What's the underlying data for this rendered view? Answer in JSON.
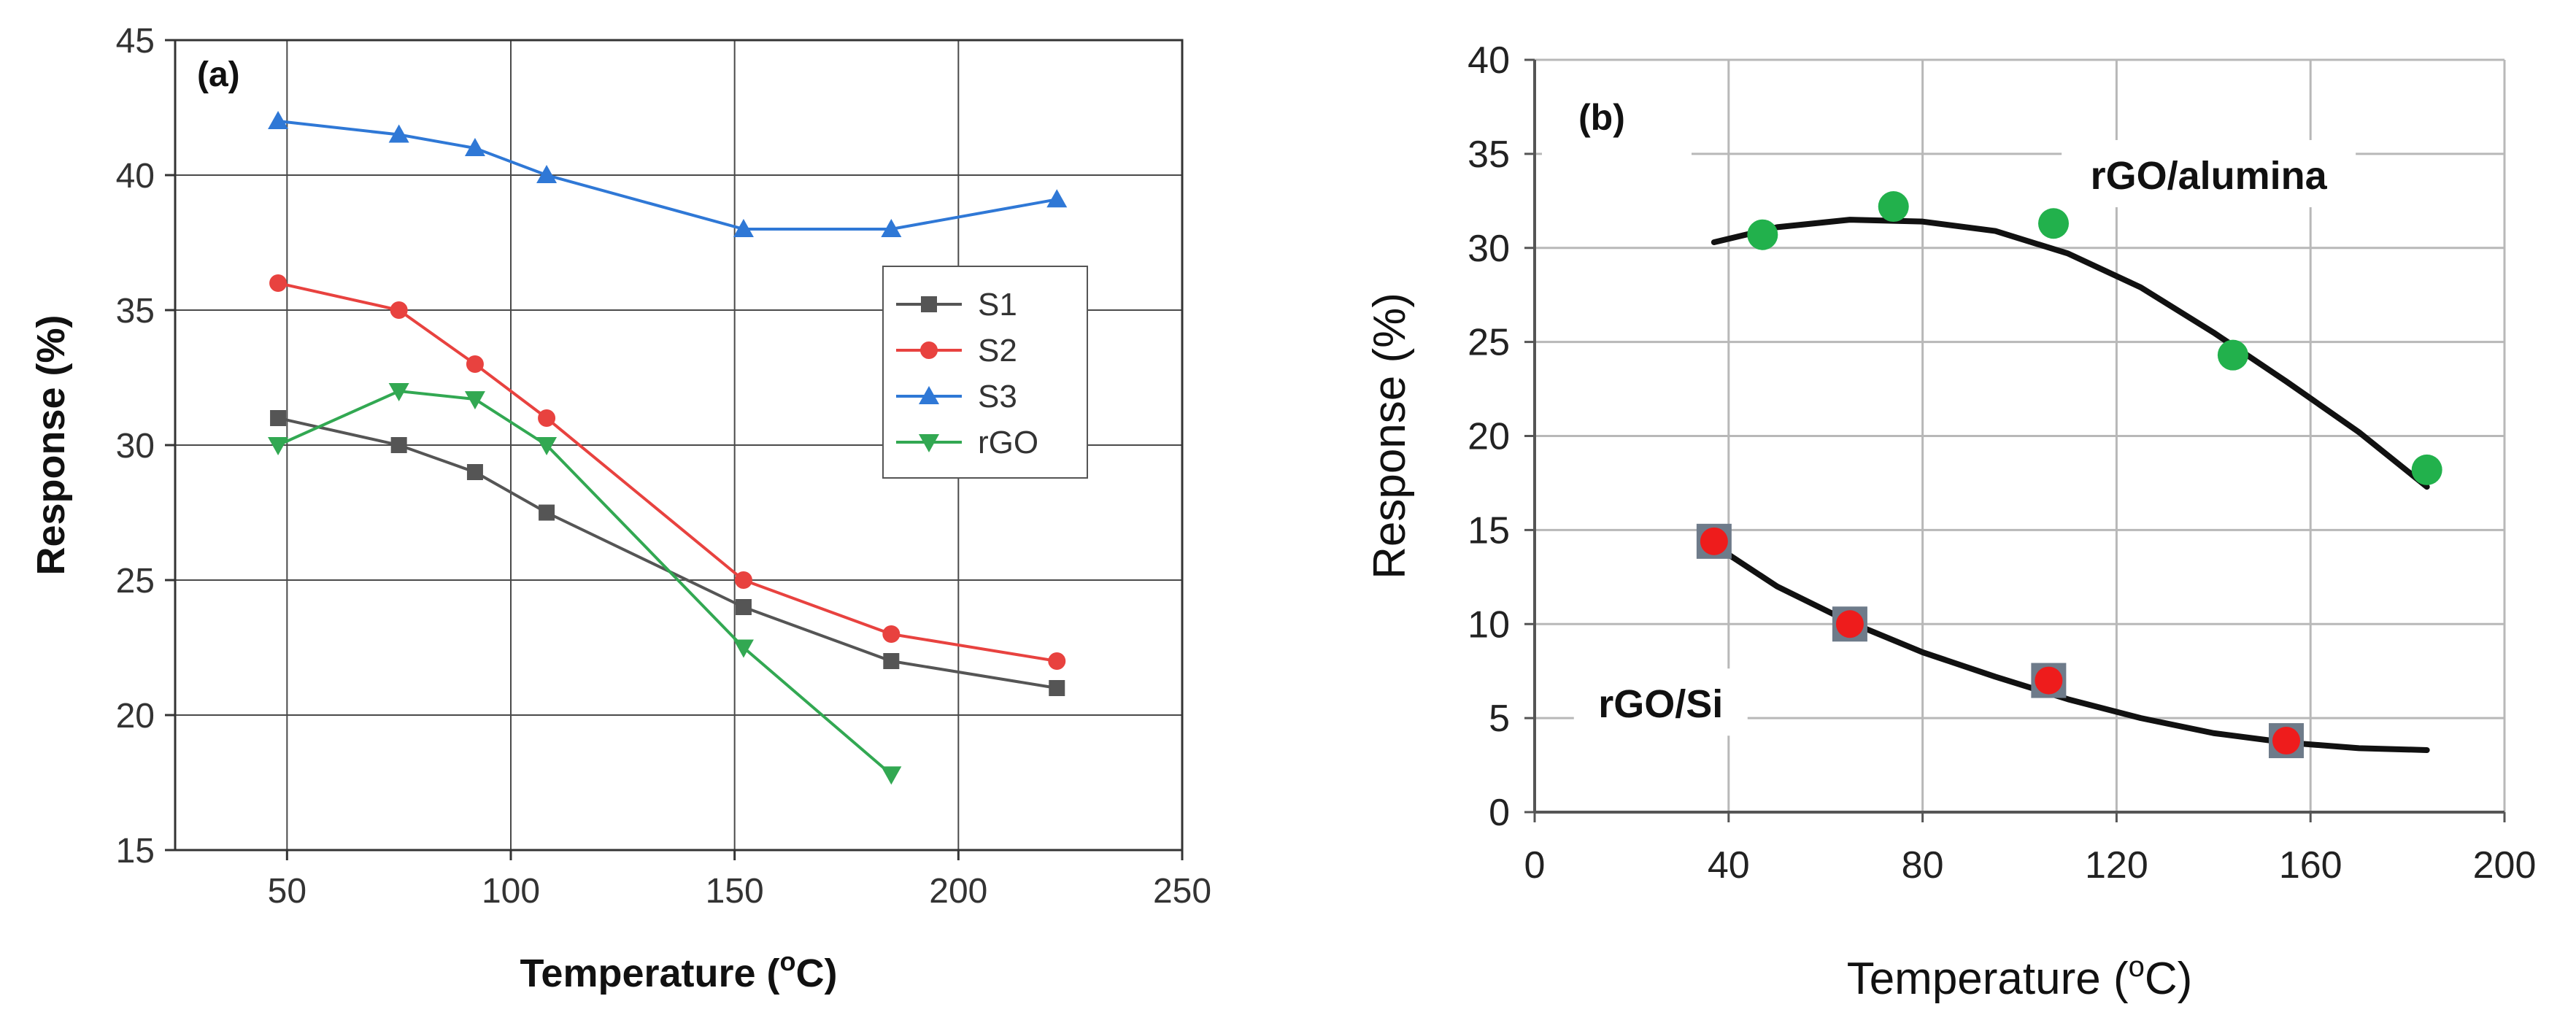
{
  "chart_data": [
    {
      "type": "line",
      "panel_label": "(a)",
      "xlabel_main": "Temperature (",
      "xlabel_sup": "o",
      "xlabel_end": "C)",
      "ylabel": "Response (%)",
      "xlim": [
        25,
        250
      ],
      "ylim": [
        15,
        45
      ],
      "xticks": [
        50,
        100,
        150,
        200,
        250
      ],
      "yticks": [
        15,
        20,
        25,
        30,
        35,
        40,
        45
      ],
      "grid": true,
      "legend_position": "right-middle",
      "series": [
        {
          "name": "S1",
          "color": "#555555",
          "marker": "square",
          "x": [
            48,
            75,
            92,
            108,
            152,
            185,
            222
          ],
          "y": [
            31,
            30,
            29,
            27.5,
            24,
            22,
            21
          ]
        },
        {
          "name": "S2",
          "color": "#e8423f",
          "marker": "circle",
          "x": [
            48,
            75,
            92,
            108,
            152,
            185,
            222
          ],
          "y": [
            36,
            35,
            33,
            31,
            25,
            23,
            22
          ]
        },
        {
          "name": "S3",
          "color": "#2f78d6",
          "marker": "triangle-up",
          "x": [
            48,
            75,
            92,
            108,
            152,
            185,
            222
          ],
          "y": [
            42,
            41.5,
            41,
            40,
            38,
            38,
            39.1
          ]
        },
        {
          "name": "rGO",
          "color": "#32a852",
          "marker": "triangle-down",
          "x": [
            48,
            75,
            92,
            108,
            152,
            185
          ],
          "y": [
            30,
            32,
            31.7,
            30,
            22.5,
            17.8
          ]
        }
      ]
    },
    {
      "type": "scatter",
      "panel_label": "(b)",
      "xlabel_main": "Temperature  (",
      "xlabel_sup": "o",
      "xlabel_end": "C)",
      "ylabel": "Response  (%)",
      "xlim": [
        0,
        200
      ],
      "ylim": [
        0,
        40
      ],
      "xticks": [
        0,
        40,
        80,
        120,
        160,
        200
      ],
      "yticks": [
        0,
        5,
        10,
        15,
        20,
        25,
        30,
        35,
        40
      ],
      "grid": true,
      "annotations": [
        {
          "text": "rGO/alumina",
          "x": 139,
          "y": 33.6
        },
        {
          "text": "rGO/Si",
          "x": 26,
          "y": 5.5
        }
      ],
      "series": [
        {
          "label": "rGO/alumina",
          "color": "#22b14c",
          "marker": "circle",
          "x": [
            47,
            74,
            107,
            144,
            184
          ],
          "y": [
            30.7,
            32.2,
            31.3,
            24.3,
            18.2
          ],
          "trend_x": [
            37,
            50,
            65,
            80,
            95,
            110,
            125,
            140,
            155,
            170,
            184
          ],
          "trend_y": [
            30.3,
            31.1,
            31.5,
            31.4,
            30.9,
            29.7,
            27.9,
            25.5,
            22.9,
            20.2,
            17.3
          ]
        },
        {
          "label": "rGO/Si",
          "color": "#ee1c1c",
          "edge_color": "#6e7b8a",
          "marker": "circle-on-square",
          "x": [
            37,
            65,
            106,
            155
          ],
          "y": [
            14.4,
            10,
            7,
            3.8
          ],
          "trend_x": [
            37,
            50,
            65,
            80,
            95,
            110,
            125,
            140,
            155,
            170,
            184
          ],
          "trend_y": [
            14.2,
            12,
            10.1,
            8.5,
            7.2,
            6,
            5,
            4.2,
            3.7,
            3.4,
            3.3
          ]
        }
      ]
    }
  ]
}
